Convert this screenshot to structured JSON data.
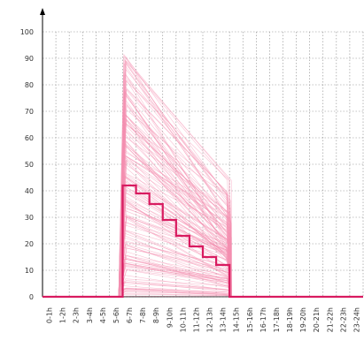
{
  "chart_data": {
    "type": "line",
    "title": "",
    "xlabel": "",
    "ylabel": "",
    "categories": [
      "0-1h",
      "1-2h",
      "2-3h",
      "3-4h",
      "4-5h",
      "5-6h",
      "6-7h",
      "7-8h",
      "8-9h",
      "9-10h",
      "10-11h",
      "11-12h",
      "12-13h",
      "13-14h",
      "14-15h",
      "15-16h",
      "16-17h",
      "17-18h",
      "18-19h",
      "19-20h",
      "20-21h",
      "21-22h",
      "22-23h",
      "23-24h"
    ],
    "ylim": [
      0,
      100
    ],
    "yticks": [
      0,
      10,
      20,
      30,
      40,
      50,
      60,
      70,
      80,
      90,
      100
    ],
    "grid": true,
    "legend": "none",
    "individual_series": {
      "count": 150,
      "color": "#f48fb1",
      "active_hours": "6-7h to 13-14h",
      "start_range": [
        0,
        92
      ],
      "end_range": [
        0,
        44
      ],
      "note_values": "individual traces rise from 0 at 5-6h to a start value, decline roughly linearly until 13-14h, then drop to 0"
    },
    "series": [
      {
        "color": "#d81b60",
        "style": "step",
        "values": [
          0,
          0,
          0,
          0,
          0,
          0,
          42,
          39,
          35,
          29,
          23,
          19,
          15,
          12,
          0,
          0,
          0,
          0,
          0,
          0,
          0,
          0,
          0,
          0
        ]
      }
    ]
  }
}
